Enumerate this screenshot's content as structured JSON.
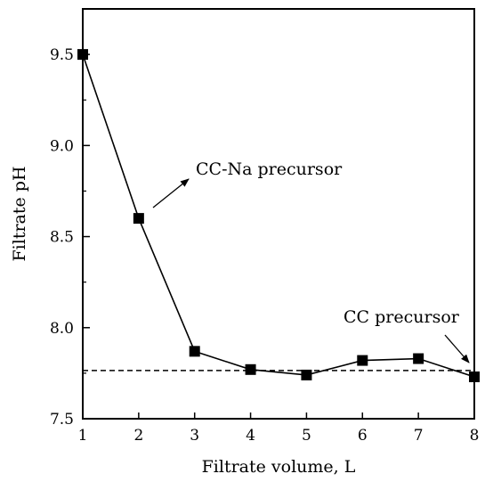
{
  "chart_data": {
    "type": "line",
    "title": "",
    "xlabel": "Filtrate volume, L",
    "ylabel": "Filtrate pH",
    "xlim": [
      1,
      8
    ],
    "ylim": [
      7.5,
      9.75
    ],
    "x_ticks": [
      "1",
      "2",
      "3",
      "4",
      "5",
      "6",
      "7",
      "8"
    ],
    "y_ticks": [
      "7.5",
      "8.0",
      "8.5",
      "9.0",
      "9.5"
    ],
    "grid": false,
    "legend": "none",
    "series": [
      {
        "x": [
          1,
          2,
          3,
          4,
          5,
          6,
          7,
          8
        ],
        "y": [
          9.5,
          8.6,
          7.87,
          7.77,
          7.74,
          7.82,
          7.83,
          7.73
        ],
        "marker": "square",
        "color": "#000000"
      }
    ],
    "reference_line": {
      "y": 7.765,
      "style": "dashed",
      "color": "#000000"
    },
    "annotations": [
      {
        "text": "CC-Na precursor",
        "target": "series point at x=2"
      },
      {
        "text": "CC precursor",
        "target": "series point at x=8"
      }
    ]
  }
}
